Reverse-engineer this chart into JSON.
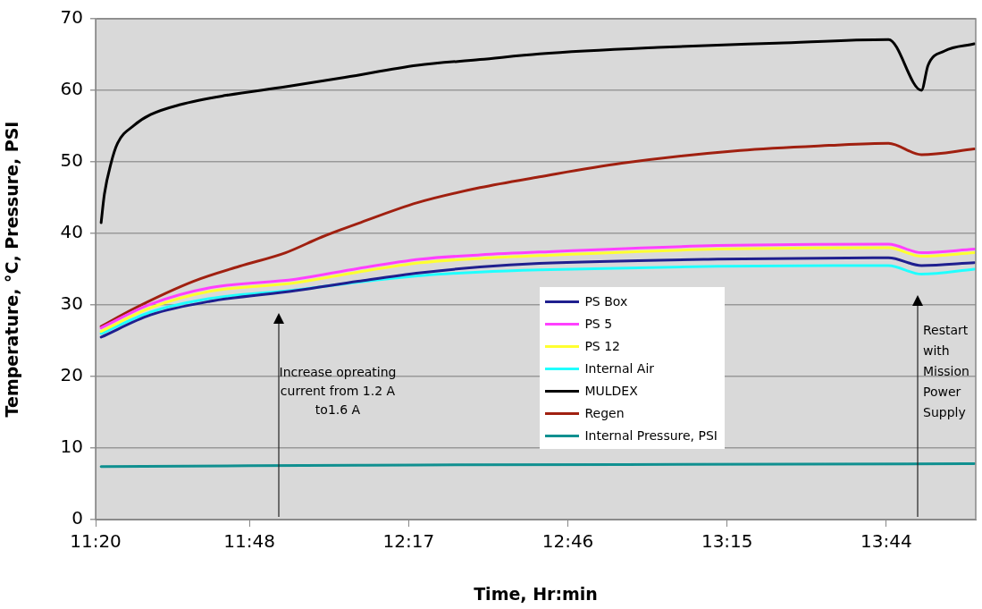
{
  "chart_data": {
    "type": "line",
    "xlabel": "Time, Hr:min",
    "ylabel": "Temperature, °C, Pressure, PSI",
    "xlim": [
      11.3333,
      14.0047
    ],
    "ylim": [
      0,
      70
    ],
    "xticks": [
      {
        "value": 11.3333,
        "label": "11:20"
      },
      {
        "value": 11.8,
        "label": "11:48"
      },
      {
        "value": 12.2833,
        "label": "12:17"
      },
      {
        "value": 12.7667,
        "label": "12:46"
      },
      {
        "value": 13.25,
        "label": "13:15"
      },
      {
        "value": 13.7333,
        "label": "13:44"
      }
    ],
    "yticks": [
      0,
      10,
      20,
      30,
      40,
      50,
      60,
      70
    ],
    "grid": "y",
    "legend": "bottom",
    "marker": "none",
    "line_style": "solid",
    "series": [
      {
        "name": "PS Box",
        "color": "#1f1f8f",
        "x": [
          11.35,
          11.5,
          11.68,
          11.94,
          12.13,
          12.32,
          12.5,
          12.68,
          13.22,
          13.74,
          13.84,
          14.0
        ],
        "values": [
          25.5,
          28.6,
          30.5,
          32.0,
          33.3,
          34.5,
          35.3,
          35.8,
          36.4,
          36.6,
          35.5,
          35.9
        ]
      },
      {
        "name": "PS 5",
        "color": "#ff40ff",
        "x": [
          11.35,
          11.5,
          11.68,
          11.94,
          12.13,
          12.32,
          12.5,
          12.68,
          13.22,
          13.74,
          13.84,
          14.0
        ],
        "values": [
          26.8,
          30.1,
          32.4,
          33.6,
          35.1,
          36.4,
          37.0,
          37.4,
          38.3,
          38.5,
          37.3,
          37.8
        ]
      },
      {
        "name": "PS 12",
        "color": "#ffff30",
        "x": [
          11.35,
          11.5,
          11.68,
          11.94,
          12.13,
          12.32,
          12.5,
          12.68,
          13.22,
          13.74,
          13.84,
          14.0
        ],
        "values": [
          26.3,
          29.6,
          31.9,
          33.1,
          34.6,
          35.9,
          36.5,
          36.9,
          37.8,
          38.0,
          36.8,
          37.3
        ]
      },
      {
        "name": "Internal Air",
        "color": "#20ffff",
        "x": [
          11.35,
          11.5,
          11.68,
          11.94,
          12.13,
          12.32,
          12.5,
          12.68,
          13.22,
          13.74,
          13.84,
          14.0
        ],
        "values": [
          26.0,
          29.0,
          30.9,
          32.1,
          33.2,
          34.1,
          34.6,
          34.9,
          35.4,
          35.5,
          34.3,
          35.0
        ]
      },
      {
        "name": "MULDEX",
        "color": "#000000",
        "x": [
          11.35,
          11.36,
          11.38,
          11.4,
          11.45,
          11.5,
          11.59,
          11.73,
          11.91,
          12.09,
          12.31,
          12.5,
          12.68,
          13.04,
          13.4,
          13.74,
          13.84,
          13.86,
          13.91,
          14.0
        ],
        "values": [
          41.5,
          45.5,
          49.8,
          52.6,
          55.1,
          56.6,
          58.0,
          59.3,
          60.5,
          61.8,
          63.5,
          64.3,
          65.1,
          66.0,
          66.6,
          67.1,
          60.0,
          63.5,
          65.5,
          66.5
        ]
      },
      {
        "name": "Regen",
        "color": "#a02010",
        "x": [
          11.35,
          11.45,
          11.63,
          11.77,
          11.91,
          12.02,
          12.13,
          12.31,
          12.5,
          12.68,
          12.93,
          13.29,
          13.56,
          13.74,
          13.84,
          14.0
        ],
        "values": [
          27.0,
          29.5,
          33.3,
          35.4,
          37.3,
          39.5,
          41.4,
          44.3,
          46.4,
          47.9,
          49.8,
          51.6,
          52.3,
          52.6,
          51.0,
          51.8
        ]
      },
      {
        "name": "Internal Pressure, PSI",
        "color": "#109090",
        "x": [
          11.35,
          12.13,
          12.94,
          14.0
        ],
        "values": [
          7.4,
          7.6,
          7.7,
          7.8
        ]
      }
    ],
    "annotations": [
      "Increase opreating current from 1.2 A to1.6 A",
      "Restart with Mission Power Supply"
    ]
  }
}
